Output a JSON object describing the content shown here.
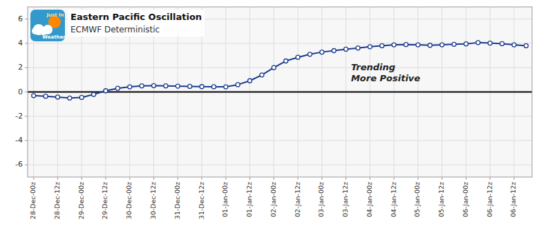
{
  "chart_data": {
    "type": "line",
    "title": "Eastern Pacific Oscillation",
    "subtitle": "ECMWF Deterministic",
    "annotation": "Trending\nMore Positive",
    "logo_text": [
      "Just In",
      "Weather"
    ],
    "categories": [
      "28-Dec-00z",
      null,
      "28-Dec-12z",
      null,
      "29-Dec-00z",
      null,
      "29-Dec-12z",
      null,
      "30-Dec-00z",
      null,
      "30-Dec-12z",
      null,
      "31-Dec-00z",
      null,
      "31-Dec-12z",
      null,
      "01-Jan-00z",
      null,
      "01-Jan-12z",
      null,
      "02-Jan-00z",
      null,
      "02-Jan-12z",
      null,
      "03-Jan-00z",
      null,
      "03-Jan-12z",
      null,
      "04-Jan-00z",
      null,
      "04-Jan-12z",
      null,
      "05-Jan-00z",
      null,
      "05-Jan-12z",
      null,
      "06-Jan-00z",
      null,
      "06-Jan-12z",
      null,
      "06-Jan-12z",
      null
    ],
    "values": [
      -0.3,
      -0.35,
      -0.42,
      -0.5,
      -0.45,
      -0.2,
      0.1,
      0.3,
      0.42,
      0.5,
      0.52,
      0.5,
      0.48,
      0.46,
      0.44,
      0.43,
      0.42,
      0.6,
      0.92,
      1.4,
      2.0,
      2.55,
      2.85,
      3.1,
      3.28,
      3.4,
      3.52,
      3.62,
      3.72,
      3.8,
      3.88,
      3.9,
      3.88,
      3.84,
      3.88,
      3.92,
      3.96,
      4.06,
      4.02,
      3.97,
      3.88,
      3.8
    ],
    "color": "#1a3a8c",
    "marker": "circle",
    "ylim": [
      -7,
      7
    ],
    "yticks": [
      -6,
      -4,
      -2,
      0,
      2,
      4,
      6
    ],
    "grid": true
  }
}
